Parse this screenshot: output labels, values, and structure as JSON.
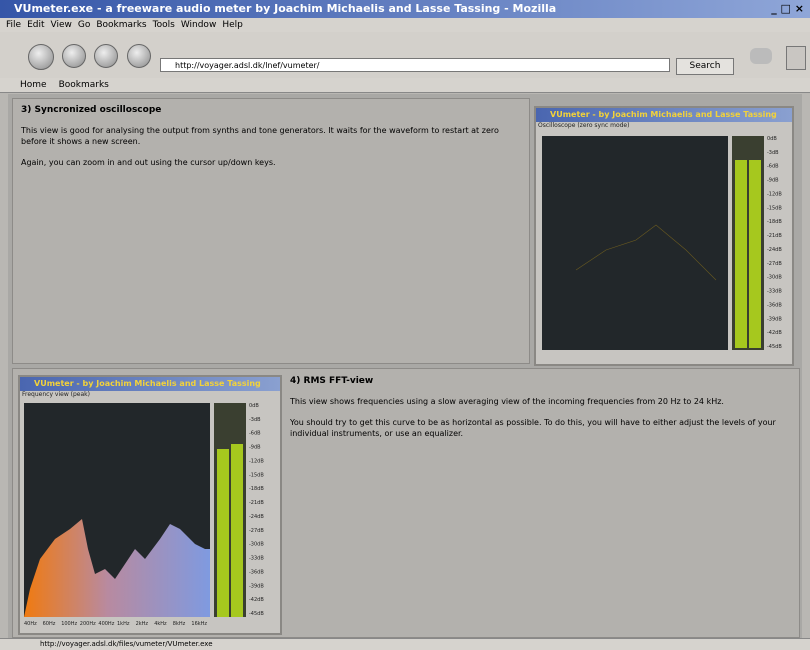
{
  "window": {
    "title": "VUmeter.exe - a freeware audio meter by Joachim Michaelis and Lasse Tassing - Mozilla"
  },
  "menu": [
    "File",
    "Edit",
    "View",
    "Go",
    "Bookmarks",
    "Tools",
    "Window",
    "Help"
  ],
  "navigation": {
    "url": "http://voyager.adsl.dk/lnef/vumeter/",
    "search": "Search"
  },
  "bookmarks_bar": [
    "Home",
    "Bookmarks"
  ],
  "sections": [
    {
      "heading": "3) Syncronized oscilloscope",
      "paragraphs": [
        "This view is good for analysing the output from synths and tone generators. It waits for the waveform to restart at zero before it shows a new screen.",
        "Again, you can zoom in and out using the cursor up/down keys."
      ],
      "meter_window": {
        "title": "VUmeter - by Joachim Michaelis and Lasse Tassing",
        "subtitle": "Oscilloscope (zero sync mode)"
      }
    },
    {
      "heading": "4) RMS FFT-view",
      "paragraphs": [
        "This view shows frequencies using a slow averaging view of the incoming frequencies from 20 Hz to 24 kHz.",
        "You should try to get this curve to be as horizontal as possible. To do this, you will have to either adjust the levels of your individual instruments, or use an equalizer."
      ],
      "meter_window": {
        "title": "VUmeter - by Joachim Michaelis and Lasse Tassing",
        "subtitle": "Frequency view (peak)"
      }
    }
  ],
  "meter_scale": [
    "0dB",
    "-3dB",
    "-6dB",
    "-9dB",
    "-12dB",
    "-15dB",
    "-18dB",
    "-21dB",
    "-24dB",
    "-27dB",
    "-30dB",
    "-33dB",
    "-36dB",
    "-39dB",
    "-42dB",
    "-45dB"
  ],
  "frequency_labels": [
    "40Hz",
    "60Hz",
    "100Hz",
    "200Hz",
    "400Hz",
    "1kHz",
    "2kHz",
    "4kHz",
    "8kHz",
    "16kHz"
  ],
  "status": {
    "url": "http://voyager.adsl.dk/files/vumeter/VUmeter.exe"
  }
}
